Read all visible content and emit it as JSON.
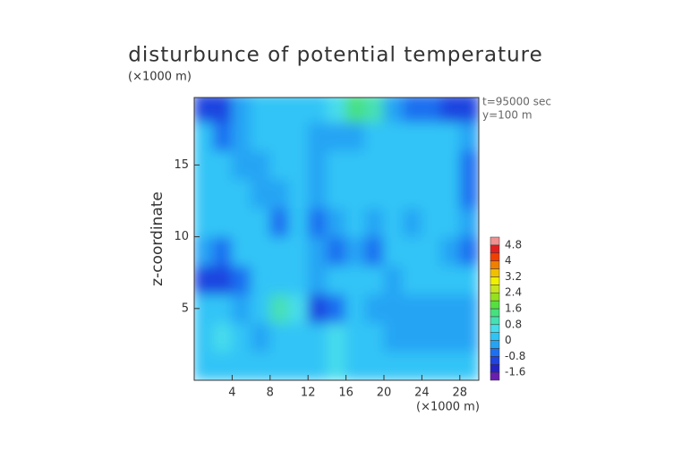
{
  "chart_data": {
    "type": "contour",
    "title": "disturbunce of potential temperature",
    "y_unit_label": "(×1000 m)",
    "x_unit_label": "(×1000 m)",
    "y_label": "z-coordinate",
    "annotations": [
      "t=95000 sec",
      "y=100 m"
    ],
    "xlim": [
      0,
      30
    ],
    "ylim": [
      0,
      19.7
    ],
    "xticks": [
      4,
      8,
      12,
      16,
      20,
      24,
      28
    ],
    "yticks": [
      5,
      10,
      15
    ],
    "x": [
      1,
      3,
      5,
      7,
      9,
      11,
      13,
      15,
      17,
      19,
      21,
      23,
      25,
      27,
      29
    ],
    "y": [
      1,
      3,
      5,
      7,
      9,
      11,
      13,
      15,
      17,
      19
    ],
    "z": [
      [
        0.0,
        0.1,
        0.0,
        0.1,
        0.0,
        0.2,
        0.3,
        0.4,
        0.2,
        0.1,
        0.0,
        0.0,
        0.1,
        0.0,
        0.0
      ],
      [
        0.0,
        0.5,
        0.2,
        -0.2,
        0.0,
        0.2,
        0.3,
        0.6,
        0.2,
        0.0,
        -0.2,
        -0.3,
        -0.3,
        -0.2,
        -0.1
      ],
      [
        0.1,
        0.1,
        -0.4,
        0.3,
        1.0,
        0.4,
        -1.0,
        -0.8,
        0.0,
        -0.2,
        -0.4,
        -0.4,
        -0.2,
        -0.4,
        -0.1
      ],
      [
        -0.9,
        -1.2,
        -0.5,
        0.1,
        0.1,
        0.0,
        -0.2,
        0.1,
        0.1,
        0.0,
        -0.2,
        0.1,
        0.0,
        0.1,
        0.0
      ],
      [
        -0.3,
        -0.5,
        0.1,
        0.1,
        0.0,
        0.0,
        -0.2,
        -0.5,
        -0.3,
        -0.5,
        0.0,
        0.1,
        0.2,
        -0.3,
        -0.5
      ],
      [
        0.1,
        0.0,
        0.1,
        0.1,
        -0.5,
        0.0,
        -0.5,
        -0.2,
        0.3,
        -0.4,
        0.0,
        -0.2,
        0.1,
        0.0,
        -0.4
      ],
      [
        0.0,
        0.1,
        0.1,
        -0.2,
        -0.4,
        0.0,
        -0.3,
        0.1,
        0.1,
        0.1,
        0.0,
        0.1,
        0.1,
        0.1,
        -0.5
      ],
      [
        0.1,
        0.0,
        -0.3,
        -0.4,
        0.2,
        0.1,
        -0.3,
        0.0,
        0.1,
        0.1,
        0.0,
        0.1,
        0.1,
        0.1,
        -0.5
      ],
      [
        0.2,
        -0.6,
        -0.4,
        0.1,
        0.3,
        0.1,
        -0.2,
        -0.4,
        -0.3,
        0.1,
        0.1,
        0.0,
        0.1,
        0.0,
        -0.3
      ],
      [
        -1.2,
        -1.2,
        -0.4,
        0.1,
        0.2,
        0.2,
        0.3,
        0.6,
        1.2,
        0.8,
        -0.2,
        -0.5,
        -0.8,
        -1.0,
        -1.2
      ]
    ],
    "colorbar": {
      "levels": [
        -2.0,
        -1.6,
        -1.2,
        -0.8,
        -0.4,
        0,
        0.4,
        0.8,
        1.2,
        1.6,
        2.0,
        2.4,
        2.8,
        3.2,
        3.6,
        4.0,
        4.4,
        4.8,
        5.2
      ],
      "colors": [
        "#6a1fb0",
        "#2424c4",
        "#1f44e0",
        "#1e70f0",
        "#26a4f4",
        "#30c4f6",
        "#46dcec",
        "#46e0b4",
        "#46e080",
        "#56e040",
        "#96e020",
        "#c8e420",
        "#f0f000",
        "#f0c000",
        "#f08000",
        "#f04000",
        "#e02020",
        "#f09090"
      ],
      "ticks": [
        -1.6,
        -0.8,
        0,
        0.8,
        1.6,
        2.4,
        3.2,
        4,
        4.8
      ]
    }
  }
}
